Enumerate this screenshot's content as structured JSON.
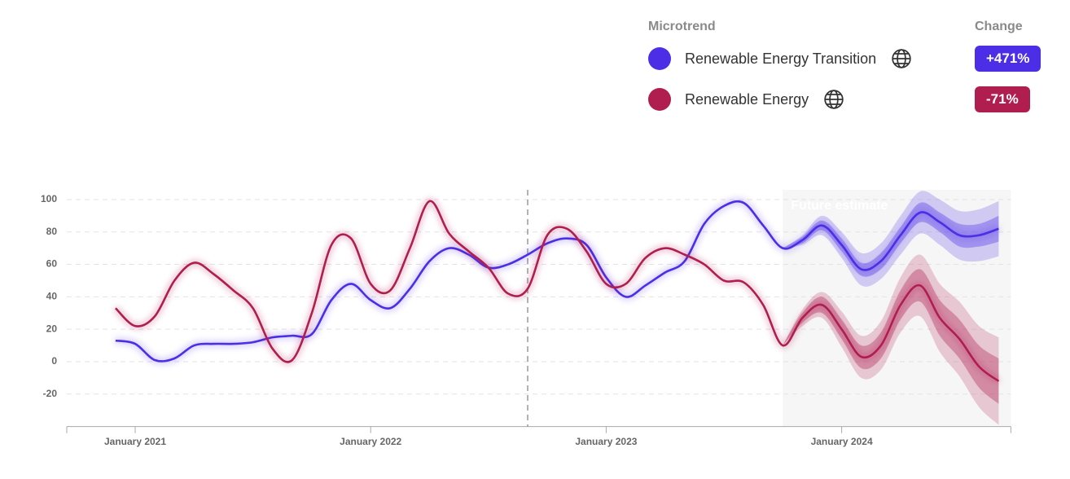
{
  "chart_data": {
    "type": "line",
    "legend_title": "Microtrend",
    "change_title": "Change",
    "annotation": "Future estimate",
    "x": [
      "2020-12",
      "2021-01",
      "2021-02",
      "2021-03",
      "2021-04",
      "2021-05",
      "2021-06",
      "2021-07",
      "2021-08",
      "2021-09",
      "2021-10",
      "2021-11",
      "2021-12",
      "2022-01",
      "2022-02",
      "2022-03",
      "2022-04",
      "2022-05",
      "2022-06",
      "2022-07",
      "2022-08",
      "2022-09",
      "2022-10",
      "2022-11",
      "2022-12",
      "2023-01",
      "2023-02",
      "2023-03",
      "2023-04",
      "2023-05",
      "2023-06",
      "2023-07",
      "2023-08",
      "2023-09",
      "2023-10",
      "2023-11",
      "2023-12",
      "2024-01",
      "2024-02",
      "2024-03",
      "2024-04",
      "2024-05",
      "2024-06",
      "2024-07",
      "2024-08",
      "2024-09"
    ],
    "forecast_x": [
      "2023-10",
      "2023-11",
      "2023-12",
      "2024-01",
      "2024-02",
      "2024-03",
      "2024-04",
      "2024-05",
      "2024-06",
      "2024-07",
      "2024-08",
      "2024-09"
    ],
    "divider_x": "2022-09",
    "xlim": [
      "2020-09",
      "2024-09"
    ],
    "xticks": [
      {
        "value": "2021-01",
        "label": "January 2021"
      },
      {
        "value": "2022-01",
        "label": "January 2022"
      },
      {
        "value": "2023-01",
        "label": "January 2023"
      },
      {
        "value": "2024-01",
        "label": "January 2024"
      }
    ],
    "ylim": [
      -40,
      106
    ],
    "yticks": [
      -20,
      0,
      20,
      40,
      60,
      80,
      100
    ],
    "grid": true,
    "series": [
      {
        "name": "Renewable Energy Transition",
        "color": "#4b2ee6",
        "change": "+471%",
        "values": [
          13,
          11,
          1,
          2,
          10,
          11,
          11,
          12,
          15,
          16,
          17,
          38,
          48,
          38,
          33,
          45,
          62,
          70,
          66,
          58,
          60,
          66,
          73,
          76,
          72,
          52,
          40,
          47,
          55,
          62,
          85,
          96,
          98,
          84,
          70,
          75,
          84,
          72,
          57,
          62,
          78,
          92,
          86,
          78,
          78,
          82
        ],
        "band_inner": {
          "lower": [
            70,
            73,
            81,
            68,
            53,
            57,
            73,
            86,
            80,
            71,
            71,
            74
          ],
          "upper": [
            70,
            77,
            87,
            76,
            61,
            67,
            83,
            98,
            92,
            85,
            85,
            90
          ]
        },
        "band_outer": {
          "lower": [
            70,
            72,
            78,
            64,
            47,
            51,
            66,
            79,
            72,
            63,
            62,
            65
          ],
          "upper": [
            70,
            78,
            90,
            80,
            67,
            73,
            90,
            105,
            100,
            93,
            94,
            99
          ]
        }
      },
      {
        "name": "Renewable Energy",
        "color": "#b01e4f",
        "change": "-71%",
        "values": [
          33,
          22,
          28,
          50,
          61,
          54,
          44,
          33,
          8,
          1,
          30,
          72,
          76,
          48,
          44,
          70,
          99,
          79,
          68,
          58,
          42,
          45,
          78,
          82,
          68,
          48,
          48,
          64,
          70,
          66,
          60,
          50,
          49,
          35,
          10,
          27,
          35,
          20,
          3,
          10,
          35,
          47,
          27,
          14,
          -3,
          -12
        ],
        "band_inner": {
          "lower": [
            10,
            24,
            30,
            14,
            -4,
            2,
            26,
            37,
            16,
            2,
            -16,
            -26
          ],
          "upper": [
            10,
            30,
            40,
            26,
            10,
            18,
            44,
            57,
            38,
            26,
            10,
            2
          ]
        },
        "band_outer": {
          "lower": [
            10,
            22,
            27,
            9,
            -10,
            -5,
            18,
            28,
            6,
            -9,
            -28,
            -39
          ],
          "upper": [
            10,
            32,
            43,
            31,
            16,
            25,
            52,
            66,
            48,
            37,
            22,
            15
          ]
        }
      }
    ]
  }
}
